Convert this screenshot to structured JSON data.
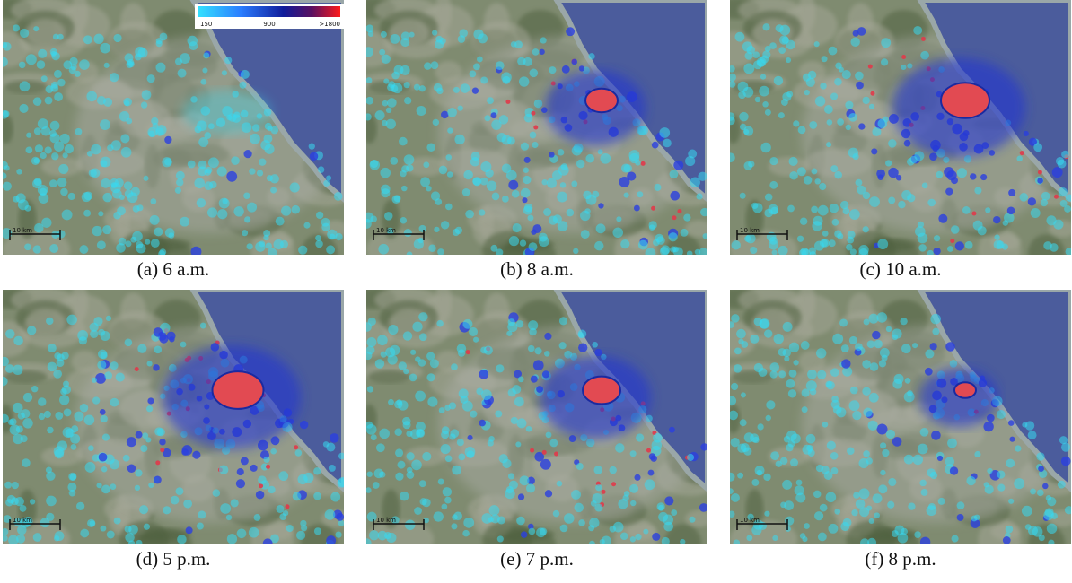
{
  "colorbar": {
    "labels": [
      "150",
      "900",
      ">1800"
    ]
  },
  "panels": [
    {
      "caption": "(a) 6 a.m.",
      "scale_label": "10 km"
    },
    {
      "caption": "(b) 8 a.m.",
      "scale_label": "10 km"
    },
    {
      "caption": "(c) 10 a.m.",
      "scale_label": "10 km"
    },
    {
      "caption": "(d) 5 p.m.",
      "scale_label": "10 km"
    },
    {
      "caption": "(e) 7 p.m.",
      "scale_label": "10 km"
    },
    {
      "caption": "(f) 8 p.m.",
      "scale_label": "10 km"
    }
  ]
}
